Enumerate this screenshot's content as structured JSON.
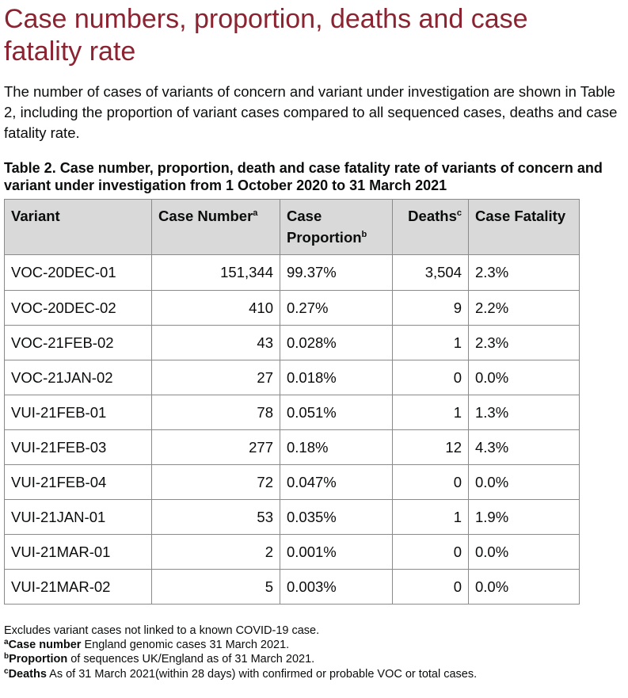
{
  "title": "Case numbers, proportion, deaths and case fatality rate",
  "intro": "The number of cases of variants of concern and variant under investigation are shown in Table 2, including the proportion of variant cases compared to all sequenced cases, deaths and case fatality rate.",
  "table": {
    "caption": "Table 2. Case number, proportion, death and case fatality rate of variants of concern and variant under investigation from 1 October 2020 to 31 March 2021",
    "headers": {
      "variant": "Variant",
      "case_number": "Case Number",
      "case_number_sup": "a",
      "case_proportion": "Case Proportion",
      "case_proportion_sup": "b",
      "deaths": "Deaths",
      "deaths_sup": "c",
      "case_fatality": "Case Fatality"
    },
    "rows": [
      {
        "variant": "VOC-20DEC-01",
        "case_number": "151,344",
        "proportion": "99.37%",
        "deaths": "3,504",
        "fatality": "2.3%"
      },
      {
        "variant": "VOC-20DEC-02",
        "case_number": "410",
        "proportion": "0.27%",
        "deaths": "9",
        "fatality": "2.2%"
      },
      {
        "variant": "VOC-21FEB-02",
        "case_number": "43",
        "proportion": "0.028%",
        "deaths": "1",
        "fatality": "2.3%"
      },
      {
        "variant": "VOC-21JAN-02",
        "case_number": "27",
        "proportion": "0.018%",
        "deaths": "0",
        "fatality": "0.0%"
      },
      {
        "variant": "VUI-21FEB-01",
        "case_number": "78",
        "proportion": "0.051%",
        "deaths": "1",
        "fatality": "1.3%"
      },
      {
        "variant": "VUI-21FEB-03",
        "case_number": "277",
        "proportion": "0.18%",
        "deaths": "12",
        "fatality": "4.3%"
      },
      {
        "variant": "VUI-21FEB-04",
        "case_number": "72",
        "proportion": "0.047%",
        "deaths": "0",
        "fatality": "0.0%"
      },
      {
        "variant": "VUI-21JAN-01",
        "case_number": "53",
        "proportion": "0.035%",
        "deaths": "1",
        "fatality": "1.9%"
      },
      {
        "variant": "VUI-21MAR-01",
        "case_number": "2",
        "proportion": "0.001%",
        "deaths": "0",
        "fatality": "0.0%"
      },
      {
        "variant": "VUI-21MAR-02",
        "case_number": "5",
        "proportion": "0.003%",
        "deaths": "0",
        "fatality": "0.0%"
      }
    ]
  },
  "footnotes": {
    "excludes": "Excludes variant cases not linked to a known COVID-19 case.",
    "a": {
      "marker": "a",
      "term": "Case number",
      "text": " England genomic cases 31 March 2021."
    },
    "b": {
      "marker": "b",
      "term": "Proportion",
      "text": " of sequences UK/England as of 31 March 2021."
    },
    "c": {
      "marker": "c",
      "term": "Deaths",
      "text": " As of 31 March 2021(within 28 days) with confirmed or probable VOC or total cases."
    }
  }
}
